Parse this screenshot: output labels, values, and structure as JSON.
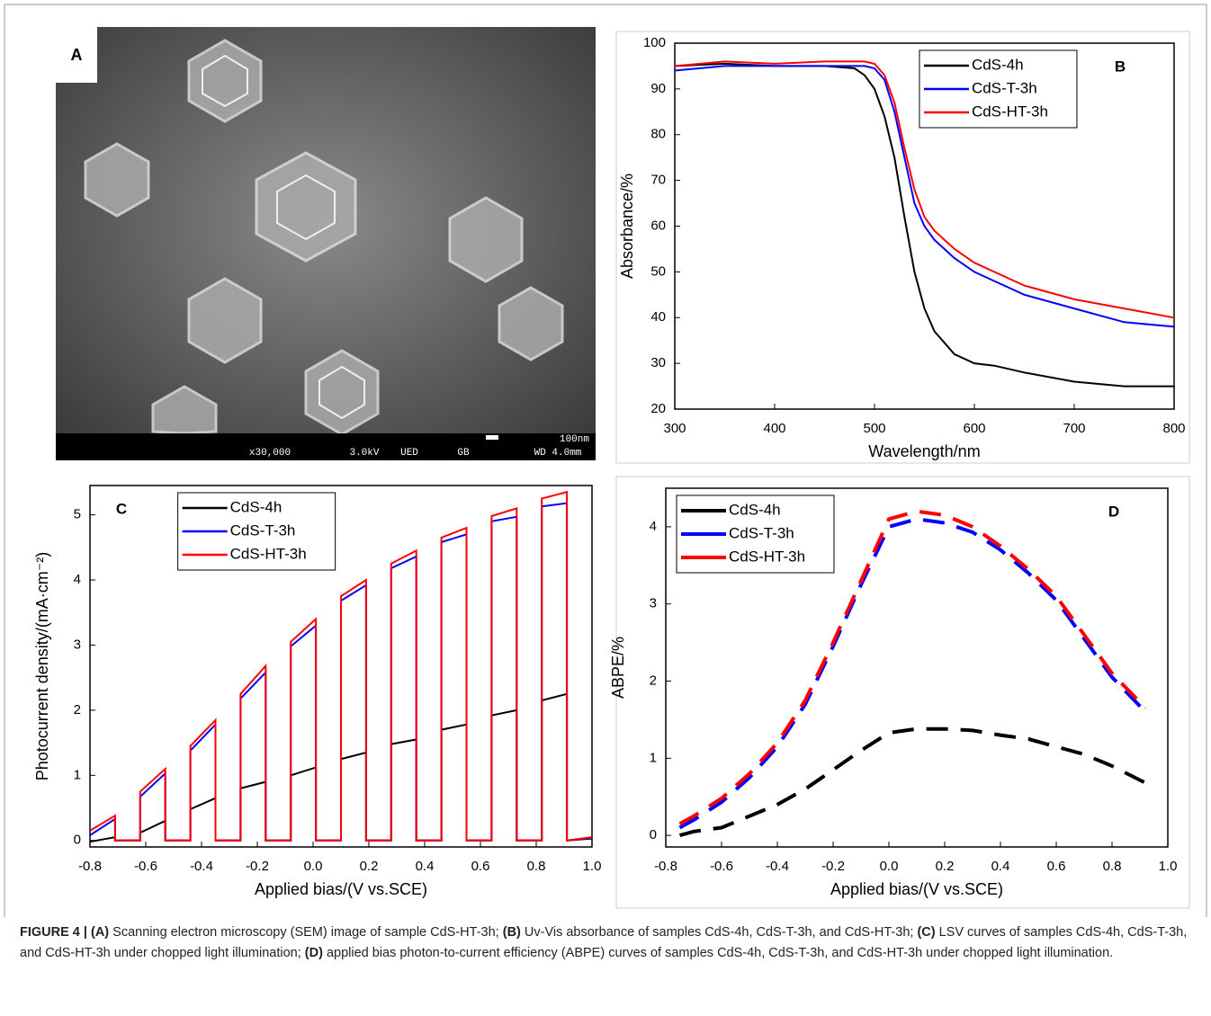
{
  "figure": {
    "panel_a": {
      "label": "A",
      "scale_bar": "100nm",
      "info": [
        "x30,000",
        "3.0kV",
        "UED",
        "GB",
        "WD 4.0mm"
      ]
    },
    "caption": [
      {
        "text": "FIGURE 4 | ",
        "bold": true
      },
      {
        "text": "(A)",
        "bold": true
      },
      {
        "text": " Scanning electron microscopy (SEM) image of sample CdS-HT-3h; ",
        "bold": false
      },
      {
        "text": "(B)",
        "bold": true
      },
      {
        "text": " Uv-Vis absorbance of samples CdS-4h, CdS-T-3h, and CdS-HT-3h; ",
        "bold": false
      },
      {
        "text": "(C)",
        "bold": true
      },
      {
        "text": " LSV curves of samples CdS-4h, CdS-T-3h, and CdS-HT-3h under chopped light illumination; ",
        "bold": false
      },
      {
        "text": "(D)",
        "bold": true
      },
      {
        "text": " applied bias photon-to-current efficiency (ABPE) curves of samples CdS-4h, CdS-T-3h, and CdS-HT-3h under chopped light illumination.",
        "bold": false
      }
    ]
  },
  "chart_data": [
    {
      "type": "line",
      "panel_label": "B",
      "x_label": "Wavelength/nm",
      "y_label": "Absorbance/%",
      "legend": "upper center",
      "dashed": false,
      "x": [
        300,
        350,
        400,
        450,
        480,
        490,
        500,
        510,
        520,
        530,
        540,
        550,
        560,
        580,
        600,
        620,
        650,
        700,
        750,
        800
      ],
      "series": [
        {
          "name": "CdS-4h",
          "color": "#000000",
          "values": [
            95,
            95.5,
            95,
            95,
            94.5,
            93,
            90,
            84,
            75,
            62,
            50,
            42,
            37,
            32,
            30,
            29.5,
            28,
            26,
            25,
            25
          ]
        },
        {
          "name": "CdS-T-3h",
          "color": "#0000ff",
          "values": [
            94,
            95,
            95,
            95,
            95,
            95,
            94.5,
            92,
            85,
            75,
            65,
            60,
            57,
            53,
            50,
            48,
            45,
            42,
            39,
            38
          ]
        },
        {
          "name": "CdS-HT-3h",
          "color": "#ff0000",
          "values": [
            95,
            96,
            95.5,
            96,
            96,
            96,
            95.5,
            93,
            87,
            77,
            68,
            62,
            59,
            55,
            52,
            50,
            47,
            44,
            42,
            40
          ]
        }
      ],
      "xlim": [
        300,
        800
      ],
      "xticks": [
        300,
        400,
        500,
        600,
        700,
        800
      ],
      "ylim": [
        20,
        100
      ],
      "yticks": [
        20,
        30,
        40,
        50,
        60,
        70,
        80,
        90,
        100
      ]
    },
    {
      "type": "line",
      "panel_label": "C",
      "x_label": "Applied bias/(V vs.SCE)",
      "y_label": "Photocurrent density/(mA·cm⁻²)",
      "legend": "upper left",
      "dashed": false,
      "x": [
        -0.8,
        -0.8,
        -0.71,
        -0.71,
        -0.62,
        -0.62,
        -0.53,
        -0.53,
        -0.44,
        -0.44,
        -0.35,
        -0.35,
        -0.26,
        -0.26,
        -0.17,
        -0.17,
        -0.08,
        -0.08,
        0.01,
        0.01,
        0.1,
        0.1,
        0.19,
        0.19,
        0.28,
        0.28,
        0.37,
        0.37,
        0.46,
        0.46,
        0.55,
        0.55,
        0.64,
        0.64,
        0.73,
        0.73,
        0.82,
        0.82,
        0.91,
        0.91,
        1
      ],
      "series": [
        {
          "name": "CdS-4h",
          "color": "#000000",
          "values": [
            -0.02,
            -0.02,
            0.05,
            0,
            0,
            0.12,
            0.3,
            0,
            0,
            0.48,
            0.65,
            0,
            0,
            0.8,
            0.9,
            0,
            0,
            1,
            1.12,
            0,
            0,
            1.25,
            1.35,
            0,
            0,
            1.48,
            1.55,
            0,
            0,
            1.7,
            1.78,
            0,
            0,
            1.92,
            2,
            0,
            0,
            2.15,
            2.25,
            0,
            0.03
          ]
        },
        {
          "name": "CdS-T-3h",
          "color": "#0000ff",
          "values": [
            0.08,
            0.08,
            0.33,
            0,
            0,
            0.67,
            1.03,
            0,
            0,
            1.38,
            1.78,
            0,
            0,
            2.18,
            2.58,
            0,
            0,
            2.98,
            3.3,
            0,
            0,
            3.68,
            3.92,
            0,
            0,
            4.18,
            4.36,
            0,
            0,
            4.58,
            4.7,
            0,
            0,
            4.9,
            4.97,
            0,
            0,
            5.13,
            5.18,
            0,
            0.04
          ]
        },
        {
          "name": "CdS-HT-3h",
          "color": "#ff0000",
          "values": [
            0.15,
            0.15,
            0.38,
            0,
            0,
            0.75,
            1.1,
            0,
            0,
            1.45,
            1.85,
            0,
            0,
            2.25,
            2.68,
            0,
            0,
            3.05,
            3.4,
            0,
            0,
            3.75,
            4,
            0,
            0,
            4.25,
            4.45,
            0,
            0,
            4.65,
            4.8,
            0,
            0,
            4.98,
            5.1,
            0,
            0,
            5.25,
            5.35,
            0,
            0.05
          ]
        }
      ],
      "xlim": [
        -0.8,
        1
      ],
      "xticks": [
        -0.8,
        -0.6,
        -0.4,
        -0.2,
        {
          "value": 0,
          "label": "0.0"
        },
        0.2,
        0.4,
        0.6,
        0.8,
        {
          "value": 1,
          "label": "1.0"
        }
      ],
      "ylim": [
        -0.1,
        5.45
      ],
      "yticks": [
        0,
        1,
        2,
        3,
        4,
        5
      ]
    },
    {
      "type": "line",
      "panel_label": "D",
      "x_label": "Applied bias/(V vs.SCE)",
      "y_label": "ABPE/%",
      "legend": "upper left",
      "dashed": true,
      "x": [
        -0.75,
        -0.7,
        -0.6,
        -0.5,
        -0.4,
        -0.3,
        -0.2,
        -0.1,
        0,
        0.1,
        0.2,
        0.3,
        0.4,
        0.5,
        0.6,
        0.7,
        0.8,
        0.92
      ],
      "series": [
        {
          "name": "CdS-4h",
          "color": "#000000",
          "values": [
            0,
            0.05,
            0.1,
            0.25,
            0.4,
            0.6,
            0.85,
            1.1,
            1.33,
            1.38,
            1.38,
            1.36,
            1.3,
            1.25,
            1.15,
            1.05,
            0.9,
            0.68
          ]
        },
        {
          "name": "CdS-T-3h",
          "color": "#0000ff",
          "values": [
            0.1,
            0.2,
            0.43,
            0.75,
            1.15,
            1.7,
            2.45,
            3.25,
            4,
            4.1,
            4.05,
            3.93,
            3.7,
            3.4,
            3.05,
            2.55,
            2.05,
            1.6
          ]
        },
        {
          "name": "CdS-HT-3h",
          "color": "#ff0000",
          "values": [
            0.15,
            0.25,
            0.48,
            0.8,
            1.2,
            1.75,
            2.5,
            3.3,
            4.1,
            4.2,
            4.15,
            4,
            3.75,
            3.45,
            3.1,
            2.6,
            2.1,
            1.65
          ]
        }
      ],
      "xlim": [
        -0.8,
        1
      ],
      "xticks": [
        -0.8,
        -0.6,
        -0.4,
        -0.2,
        {
          "value": 0,
          "label": "0.0"
        },
        0.2,
        0.4,
        0.6,
        0.8,
        {
          "value": 1,
          "label": "1.0"
        }
      ],
      "ylim": [
        -0.15,
        4.5
      ],
      "yticks": [
        0,
        1,
        2,
        3,
        4
      ]
    }
  ]
}
